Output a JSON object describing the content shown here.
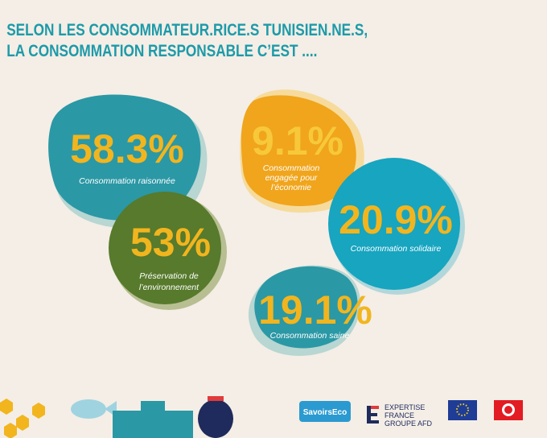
{
  "title": [
    "SELON LES CONSOMMATEUR.RICE.S TUNISIEN.NE.S,",
    "LA CONSOMMATION RESPONSABLE C’EST ...."
  ],
  "items": [
    {
      "value": "58.3%",
      "label": [
        "Consommation raisonnée"
      ]
    },
    {
      "value": "53%",
      "label": [
        "Préservation de",
        "l’environnement"
      ]
    },
    {
      "value": "9.1%",
      "label": [
        "Consommation",
        "engagée pour",
        "l’économie"
      ]
    },
    {
      "value": "20.9%",
      "label": [
        "Consommation solidaire"
      ]
    },
    {
      "value": "19.1%",
      "label": [
        "Consommation saine"
      ]
    }
  ],
  "logos": {
    "savoirs": "SavoirsEco",
    "expertise": [
      "EXPERTISE",
      "FRANCE",
      "GROUPE AFD"
    ]
  }
}
